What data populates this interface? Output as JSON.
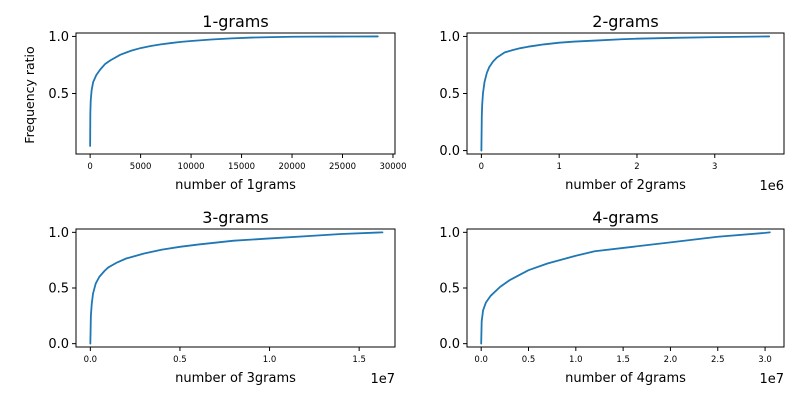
{
  "figure": {
    "ylabel": "Frequency ratio",
    "line_color": "#1f77b4"
  },
  "chart_data": [
    {
      "type": "line",
      "title": "1-grams",
      "xlabel": "number of 1grams",
      "x_offset_label": "",
      "xlim": [
        -1400,
        30200
      ],
      "ylim": [
        -0.03,
        1.03
      ],
      "xticks": [
        0,
        5000,
        10000,
        15000,
        20000,
        25000,
        30000
      ],
      "xtick_labels": [
        "0",
        "5000",
        "10000",
        "15000",
        "20000",
        "25000",
        "30000"
      ],
      "yticks": [
        0.5,
        1.0
      ],
      "ytick_labels": [
        "0.5",
        "1.0"
      ],
      "series": [
        {
          "x": [
            0,
            20,
            60,
            150,
            300,
            600,
            1000,
            1500,
            2000,
            3000,
            4000,
            5000,
            6000,
            7000,
            8000,
            9000,
            10000,
            12000,
            14000,
            16000,
            18000,
            20000,
            22000,
            24000,
            26000,
            28500
          ],
          "y": [
            0.04,
            0.33,
            0.44,
            0.53,
            0.6,
            0.66,
            0.71,
            0.76,
            0.79,
            0.84,
            0.873,
            0.898,
            0.916,
            0.93,
            0.942,
            0.952,
            0.96,
            0.973,
            0.983,
            0.99,
            0.994,
            0.997,
            0.998,
            0.999,
            0.9995,
            1.0
          ]
        }
      ]
    },
    {
      "type": "line",
      "title": "2-grams",
      "xlabel": "number of 2grams",
      "x_offset_label": "1e6",
      "xlim": [
        -0.185,
        3.89
      ],
      "ylim": [
        -0.03,
        1.03
      ],
      "xticks": [
        0,
        1,
        2,
        3
      ],
      "xtick_labels": [
        "0",
        "1",
        "2",
        "3"
      ],
      "yticks": [
        0.0,
        0.5,
        1.0
      ],
      "ytick_labels": [
        "0.0",
        "0.5",
        "1.0"
      ],
      "series": [
        {
          "x": [
            0,
            0.005,
            0.01,
            0.02,
            0.04,
            0.07,
            0.1,
            0.15,
            0.2,
            0.3,
            0.4,
            0.5,
            0.6,
            0.7,
            0.8,
            1.0,
            1.2,
            1.5,
            1.8,
            2.0,
            2.5,
            3.0,
            3.5,
            3.7
          ],
          "y": [
            0.0,
            0.3,
            0.4,
            0.5,
            0.6,
            0.68,
            0.73,
            0.78,
            0.815,
            0.86,
            0.88,
            0.897,
            0.91,
            0.92,
            0.93,
            0.945,
            0.955,
            0.965,
            0.975,
            0.98,
            0.988,
            0.994,
            0.998,
            1.0
          ]
        }
      ]
    },
    {
      "type": "line",
      "title": "3-grams",
      "xlabel": "number of 3grams",
      "x_offset_label": "1e7",
      "xlim": [
        -0.08,
        1.7
      ],
      "ylim": [
        -0.03,
        1.03
      ],
      "xticks": [
        0.0,
        0.5,
        1.0,
        1.5
      ],
      "xtick_labels": [
        "0.0",
        "0.5",
        "1.0",
        "1.5"
      ],
      "yticks": [
        0.0,
        0.5,
        1.0
      ],
      "ytick_labels": [
        "0.0",
        "0.5",
        "1.0"
      ],
      "series": [
        {
          "x": [
            0,
            0.003,
            0.008,
            0.015,
            0.03,
            0.05,
            0.08,
            0.1,
            0.15,
            0.2,
            0.3,
            0.4,
            0.5,
            0.6,
            0.8,
            1.0,
            1.2,
            1.4,
            1.6,
            1.63
          ],
          "y": [
            0.0,
            0.25,
            0.36,
            0.45,
            0.54,
            0.6,
            0.655,
            0.685,
            0.73,
            0.765,
            0.81,
            0.845,
            0.87,
            0.89,
            0.925,
            0.945,
            0.965,
            0.985,
            0.998,
            1.0
          ]
        }
      ]
    },
    {
      "type": "line",
      "title": "4-grams",
      "xlabel": "number of 4grams",
      "x_offset_label": "1e7",
      "xlim": [
        -0.15,
        3.2
      ],
      "ylim": [
        -0.03,
        1.03
      ],
      "xticks": [
        0.0,
        0.5,
        1.0,
        1.5,
        2.0,
        2.5,
        3.0
      ],
      "xtick_labels": [
        "0.0",
        "0.5",
        "1.0",
        "1.5",
        "2.0",
        "2.5",
        "3.0"
      ],
      "yticks": [
        0.0,
        0.5,
        1.0
      ],
      "ytick_labels": [
        "0.0",
        "0.5",
        "1.0"
      ],
      "series": [
        {
          "x": [
            0,
            0.005,
            0.02,
            0.05,
            0.1,
            0.2,
            0.3,
            0.5,
            0.7,
            1.0,
            1.2,
            1.5,
            2.0,
            2.5,
            3.0,
            3.05
          ],
          "y": [
            0.0,
            0.2,
            0.3,
            0.37,
            0.43,
            0.51,
            0.57,
            0.66,
            0.72,
            0.79,
            0.83,
            0.86,
            0.91,
            0.96,
            0.995,
            1.0
          ]
        }
      ]
    }
  ]
}
